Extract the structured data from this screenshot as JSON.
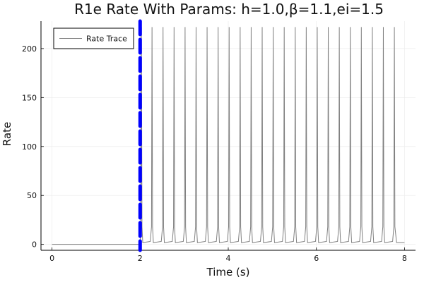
{
  "chart_data": {
    "type": "line",
    "title": "R1e Rate With Params: h=1.0,β=1.1,ei=1.5",
    "xlabel": "Time (s)",
    "ylabel": "Rate",
    "xlim": [
      -0.25,
      8.25
    ],
    "ylim": [
      -6,
      228
    ],
    "xticks": [
      0,
      2,
      4,
      6,
      8
    ],
    "yticks": [
      0,
      50,
      100,
      150,
      200
    ],
    "grid": true,
    "legend_position": "top-left",
    "series": [
      {
        "name": "Rate Trace",
        "color": "#808080",
        "baseline": 0,
        "onset_time": 2.0,
        "spike_times": [
          2.03,
          2.27,
          2.52,
          2.77,
          3.02,
          3.27,
          3.52,
          3.77,
          4.02,
          4.27,
          4.52,
          4.77,
          5.02,
          5.27,
          5.52,
          5.77,
          6.02,
          6.27,
          6.52,
          6.77,
          7.02,
          7.27,
          7.52,
          7.77
        ],
        "spike_peak": 222,
        "interspike_level": 3
      }
    ],
    "vertical_line": {
      "x": 2.0,
      "color": "#0000ff",
      "style": "dashed"
    }
  }
}
